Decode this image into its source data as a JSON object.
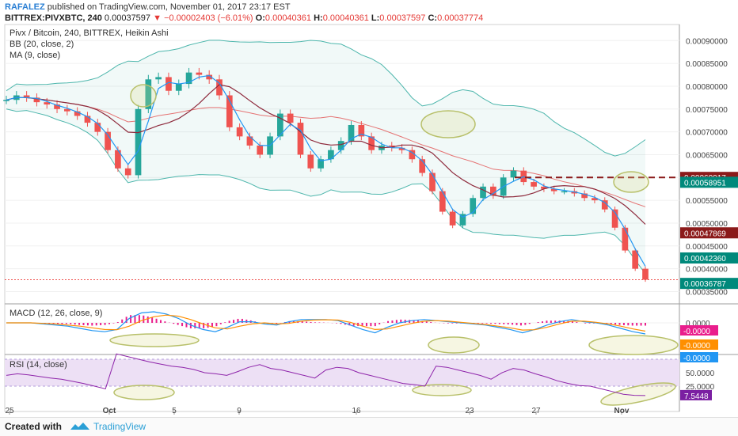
{
  "header": {
    "author": "RAFALEZ",
    "published": "published on TradingView.com, November 01, 2017 23:17 EST",
    "symbol": "BITTREX:PIVXBTC, 240",
    "last": "0.00037597",
    "change": "−0.00002403 (−6.01%)",
    "o_label": "O:",
    "o": "0.00040361",
    "h_label": "H:",
    "h": "0.00040361",
    "l_label": "L:",
    "l": "0.00037597",
    "c_label": "C:",
    "c": "0.00037774"
  },
  "legend": {
    "title": "Pivx / Bitcoin, 240, BITTREX, Heikin Ashi",
    "bb": "BB (20, close, 2)",
    "ma": "MA (9, close)",
    "macd": "MACD (12, 26, close, 9)",
    "rsi": "RSI (14, close)"
  },
  "footer": {
    "created": "Created with",
    "brand": "TradingView"
  },
  "colors": {
    "up": "#26a69a",
    "down": "#ef5350",
    "bb": "#4db6ac",
    "ma": "#8e2a3c",
    "macd_line": "#2196f3",
    "signal": "#ff8f00",
    "hist": "#e91e8c",
    "rsi": "#7b1fa2",
    "ellipse": "#c8d08a"
  },
  "chart_data": [
    {
      "type": "candlestick",
      "title": "Pivx / Bitcoin, 240, BITTREX, Heikin Ashi",
      "price_axis": {
        "ticks": [
          "0.00090000",
          "0.00085000",
          "0.00080000",
          "0.00075000",
          "0.00070000",
          "0.00065000",
          "0.00060000",
          "0.00055000",
          "0.00050000",
          "0.00045000",
          "0.00040000",
          "0.00035000"
        ],
        "range": [
          0.00033,
          0.00093
        ]
      },
      "x_ticks": [
        "25",
        "Oct",
        "5",
        "9",
        "16",
        "23",
        "27",
        "Nov"
      ],
      "price_labels": [
        {
          "text": "0.00060017",
          "value": 0.00060017,
          "color": "#8b1a1a"
        },
        {
          "text": "0.00058951",
          "value": 0.00058951,
          "color": "#00897b"
        },
        {
          "text": "0.00047869",
          "value": 0.00047869,
          "color": "#8b1a1a"
        },
        {
          "text": "0.00042360",
          "value": 0.0004236,
          "color": "#00897b"
        },
        {
          "text": "0.00036787",
          "value": 0.00036787,
          "color": "#00897b"
        }
      ],
      "resistance_level": 0.00060017,
      "close_line": 0.00037597,
      "series": [
        {
          "name": "Heikin Ashi close",
          "values": [
            0.00077,
            0.00078,
            0.000775,
            0.000765,
            0.00076,
            0.00075,
            0.000745,
            0.000735,
            0.00072,
            0.0007,
            0.00066,
            0.00062,
            0.000605,
            0.00075,
            0.000815,
            0.00082,
            0.00079,
            0.000805,
            0.00083,
            0.000825,
            0.000815,
            0.00078,
            0.00071,
            0.00069,
            0.00067,
            0.00065,
            0.00069,
            0.00074,
            0.00072,
            0.00065,
            0.00062,
            0.00064,
            0.00066,
            0.00068,
            0.000715,
            0.00069,
            0.00066,
            0.00067,
            0.000665,
            0.00066,
            0.00064,
            0.00061,
            0.00057,
            0.000525,
            0.000495,
            0.00052,
            0.000555,
            0.00058,
            0.00056,
            0.0006,
            0.000615,
            0.00059,
            0.00058,
            0.000575,
            0.00057,
            0.00057,
            0.000565,
            0.000555,
            0.00055,
            0.00053,
            0.00049,
            0.00044,
            0.0004,
            0.000376
          ]
        }
      ]
    },
    {
      "type": "line",
      "title": "MACD (12, 26, close, 9)",
      "ticks": [
        "0.0000"
      ],
      "value_labels": [
        {
          "text": "-0.0000",
          "color": "#e91e8c"
        },
        {
          "text": "-0.0000",
          "color": "#ff8f00"
        },
        {
          "text": "-0.0000",
          "color": "#2196f3"
        }
      ],
      "series": [
        {
          "name": "MACD",
          "values": [
            0,
            0,
            0,
            -0.1,
            -0.2,
            -0.3,
            -0.5,
            -0.7,
            -0.8,
            -0.6,
            0.4,
            0.9,
            1,
            0.8,
            0.4,
            -0.2,
            -0.6,
            -0.8,
            -0.4,
            0.1,
            0.1,
            -0.1,
            -0.2,
            0.1,
            0.3,
            0.3,
            0.3,
            0.2,
            -0.2,
            -0.6,
            -0.9,
            -0.4,
            0,
            0.2,
            0.3,
            0.2,
            0.1,
            0,
            -0.1,
            -0.2,
            -0.4,
            -0.6,
            -0.9,
            -0.6,
            -0.2,
            0.1,
            0.3,
            0.1,
            0,
            -0.2,
            -0.5,
            -0.8,
            -1
          ]
        },
        {
          "name": "Signal",
          "values": [
            0,
            0,
            0,
            -0.05,
            -0.1,
            -0.2,
            -0.3,
            -0.45,
            -0.6,
            -0.62,
            -0.3,
            0.2,
            0.55,
            0.7,
            0.6,
            0.3,
            -0.1,
            -0.45,
            -0.55,
            -0.3,
            -0.1,
            0,
            -0.1,
            -0.05,
            0.15,
            0.25,
            0.28,
            0.25,
            0.05,
            -0.3,
            -0.6,
            -0.55,
            -0.3,
            -0.05,
            0.15,
            0.2,
            0.15,
            0.05,
            -0.05,
            -0.15,
            -0.3,
            -0.45,
            -0.65,
            -0.62,
            -0.4,
            -0.1,
            0.15,
            0.15,
            0.05,
            -0.1,
            -0.3,
            -0.55,
            -0.75
          ]
        }
      ]
    },
    {
      "type": "line",
      "title": "RSI (14, close)",
      "ticks": [
        "50.0000",
        "25.0000"
      ],
      "last_value": "7.5448",
      "series": [
        {
          "name": "RSI",
          "values": [
            45,
            48,
            46,
            43,
            40,
            38,
            34,
            30,
            25,
            20,
            85,
            80,
            75,
            70,
            66,
            62,
            60,
            56,
            50,
            48,
            45,
            52,
            60,
            65,
            58,
            55,
            50,
            45,
            40,
            55,
            60,
            58,
            50,
            45,
            40,
            35,
            30,
            28,
            25,
            62,
            60,
            55,
            50,
            45,
            38,
            50,
            58,
            55,
            48,
            42,
            35,
            30,
            26,
            25,
            20,
            15,
            10,
            8,
            7.5
          ]
        }
      ]
    }
  ]
}
